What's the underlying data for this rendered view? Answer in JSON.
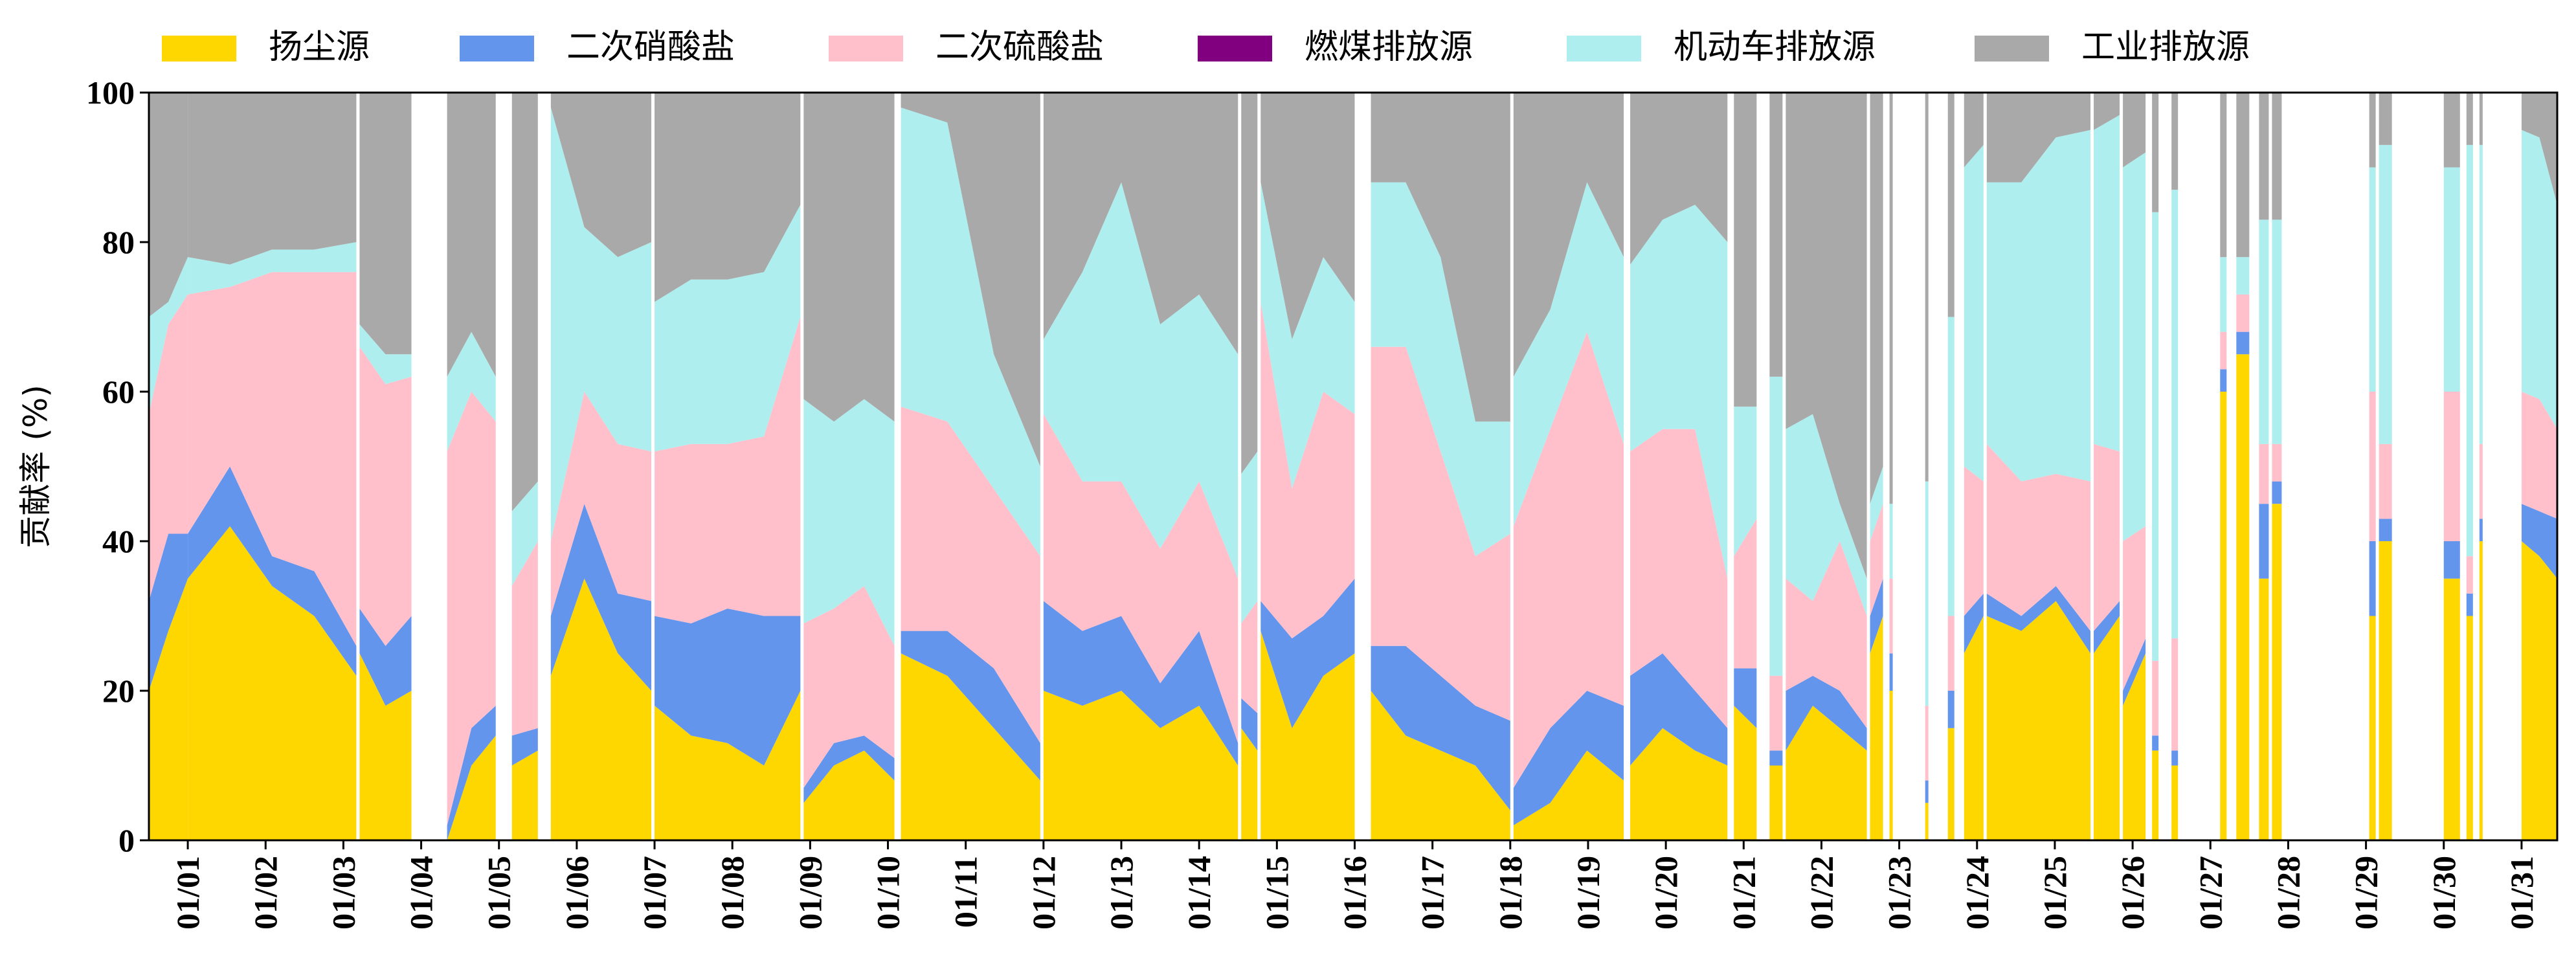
{
  "chart_data": {
    "type": "area",
    "stacked": true,
    "x_unit": "hour",
    "xlabel": "",
    "ylabel": "贡献率 (%)",
    "ylim": [
      0,
      100
    ],
    "yticks": [
      0,
      20,
      40,
      60,
      80,
      100
    ],
    "xticks": [
      "01/01",
      "01/02",
      "01/03",
      "01/04",
      "01/05",
      "01/06",
      "01/07",
      "01/08",
      "01/09",
      "01/10",
      "01/11",
      "01/12",
      "01/13",
      "01/14",
      "01/15",
      "01/16",
      "01/17",
      "01/18",
      "01/19",
      "01/20",
      "01/21",
      "01/22",
      "01/23",
      "01/24",
      "01/25",
      "01/26",
      "01/27",
      "01/28",
      "01/29",
      "01/30",
      "01/31"
    ],
    "x_range": [
      "01/01 00:00",
      "01/31 23:00"
    ],
    "legend_position": "top",
    "grid": false,
    "segment_note": "Approximate hourly-averaged segments; contributions listed per segment from bottom to top in series order; gaps are missing data.",
    "series": [
      {
        "name": "扬尘源",
        "color": "#FFD700"
      },
      {
        "name": "二次硝酸盐",
        "color": "#6495ED"
      },
      {
        "name": "二次硫酸盐",
        "color": "#FFC0CB"
      },
      {
        "name": "燃煤排放源",
        "color": "#800080"
      },
      {
        "name": "机动车排放源",
        "color": "#AFEEEE"
      },
      {
        "name": "工业排放源",
        "color": "#A9A9A9"
      }
    ],
    "segments": [
      {
        "start": "01/01 00:00",
        "end": "01/01 12:00",
        "values": [
          [
            20,
            12,
            25,
            0,
            13,
            30
          ],
          [
            28,
            13,
            28,
            0,
            3,
            28
          ],
          [
            35,
            6,
            32,
            0,
            5,
            22
          ]
        ]
      },
      {
        "start": "01/01 12:00",
        "end": "01/03 16:00",
        "values": [
          [
            35,
            6,
            32,
            0,
            5,
            22
          ],
          [
            42,
            8,
            24,
            0,
            3,
            23
          ],
          [
            34,
            4,
            38,
            0,
            3,
            21
          ],
          [
            30,
            6,
            40,
            0,
            3,
            21
          ],
          [
            22,
            4,
            50,
            0,
            4,
            20
          ]
        ]
      },
      {
        "start": "01/03 17:00",
        "end": "01/04 09:00",
        "values": [
          [
            25,
            6,
            35,
            0,
            3,
            31
          ],
          [
            18,
            8,
            35,
            0,
            4,
            35
          ],
          [
            20,
            10,
            32,
            0,
            3,
            35
          ]
        ]
      },
      {
        "start": "01/04 20:00",
        "end": "01/05 11:00",
        "values": [
          [
            0,
            2,
            50,
            0,
            10,
            38
          ],
          [
            10,
            5,
            45,
            0,
            8,
            32
          ],
          [
            14,
            4,
            38,
            0,
            6,
            38
          ]
        ]
      },
      {
        "start": "01/05 16:00",
        "end": "01/06 00:00",
        "values": [
          [
            10,
            4,
            20,
            0,
            10,
            56
          ],
          [
            12,
            3,
            25,
            0,
            8,
            52
          ]
        ]
      },
      {
        "start": "01/06 04:00",
        "end": "01/07 11:00",
        "values": [
          [
            22,
            8,
            10,
            0,
            58,
            2
          ],
          [
            35,
            10,
            15,
            0,
            22,
            18
          ],
          [
            25,
            8,
            20,
            0,
            25,
            22
          ],
          [
            20,
            12,
            20,
            0,
            28,
            20
          ]
        ]
      },
      {
        "start": "01/07 12:00",
        "end": "01/09 09:00",
        "values": [
          [
            18,
            12,
            22,
            0,
            20,
            28
          ],
          [
            14,
            15,
            24,
            0,
            22,
            25
          ],
          [
            13,
            18,
            22,
            0,
            22,
            25
          ],
          [
            10,
            20,
            24,
            0,
            22,
            24
          ],
          [
            20,
            10,
            40,
            0,
            15,
            15
          ]
        ]
      },
      {
        "start": "01/09 10:00",
        "end": "01/10 14:00",
        "values": [
          [
            5,
            2,
            22,
            0,
            30,
            41
          ],
          [
            10,
            3,
            18,
            0,
            25,
            44
          ],
          [
            12,
            2,
            20,
            0,
            25,
            41
          ],
          [
            8,
            3,
            15,
            0,
            30,
            44
          ]
        ]
      },
      {
        "start": "01/10 16:00",
        "end": "01/12 11:00",
        "values": [
          [
            25,
            3,
            30,
            0,
            40,
            2
          ],
          [
            22,
            6,
            28,
            0,
            40,
            4
          ],
          [
            15,
            8,
            24,
            0,
            18,
            35
          ],
          [
            8,
            5,
            25,
            0,
            12,
            50
          ]
        ]
      },
      {
        "start": "01/12 12:00",
        "end": "01/15 00:00",
        "values": [
          [
            20,
            12,
            25,
            0,
            10,
            33
          ],
          [
            18,
            10,
            20,
            0,
            28,
            24
          ],
          [
            20,
            10,
            18,
            0,
            40,
            12
          ],
          [
            15,
            6,
            18,
            0,
            30,
            31
          ],
          [
            18,
            10,
            20,
            0,
            25,
            27
          ],
          [
            10,
            3,
            22,
            0,
            30,
            35
          ]
        ]
      },
      {
        "start": "01/15 01:00",
        "end": "01/15 06:00",
        "values": [
          [
            15,
            4,
            10,
            0,
            20,
            51
          ],
          [
            12,
            5,
            15,
            0,
            20,
            48
          ]
        ]
      },
      {
        "start": "01/15 07:00",
        "end": "01/16 12:00",
        "values": [
          [
            28,
            4,
            40,
            0,
            16,
            12
          ],
          [
            15,
            12,
            20,
            0,
            20,
            33
          ],
          [
            22,
            8,
            30,
            0,
            18,
            22
          ],
          [
            25,
            10,
            22,
            0,
            15,
            28
          ]
        ]
      },
      {
        "start": "01/16 17:00",
        "end": "01/18 12:00",
        "values": [
          [
            20,
            6,
            40,
            0,
            22,
            12
          ],
          [
            14,
            12,
            40,
            0,
            22,
            12
          ],
          [
            12,
            10,
            30,
            0,
            26,
            22
          ],
          [
            10,
            8,
            20,
            0,
            18,
            44
          ],
          [
            4,
            12,
            25,
            0,
            15,
            44
          ]
        ]
      },
      {
        "start": "01/18 13:00",
        "end": "01/19 23:00",
        "values": [
          [
            2,
            5,
            35,
            0,
            20,
            38
          ],
          [
            5,
            10,
            40,
            0,
            16,
            29
          ],
          [
            12,
            8,
            48,
            0,
            20,
            12
          ],
          [
            8,
            10,
            35,
            0,
            25,
            22
          ]
        ]
      },
      {
        "start": "01/20 01:00",
        "end": "01/21 07:00",
        "values": [
          [
            10,
            12,
            30,
            0,
            25,
            23
          ],
          [
            15,
            10,
            30,
            0,
            28,
            17
          ],
          [
            12,
            8,
            35,
            0,
            30,
            15
          ],
          [
            10,
            5,
            20,
            0,
            45,
            20
          ]
        ]
      },
      {
        "start": "01/21 09:00",
        "end": "01/21 16:00",
        "values": [
          [
            18,
            5,
            15,
            0,
            20,
            42
          ],
          [
            15,
            8,
            20,
            0,
            15,
            42
          ]
        ]
      },
      {
        "start": "01/21 20:00",
        "end": "01/22 00:00",
        "values": [
          [
            10,
            2,
            10,
            0,
            40,
            38
          ]
        ]
      },
      {
        "start": "01/22 01:00",
        "end": "01/23 02:00",
        "values": [
          [
            12,
            8,
            15,
            0,
            20,
            45
          ],
          [
            18,
            4,
            10,
            0,
            25,
            43
          ],
          [
            15,
            5,
            20,
            0,
            5,
            55
          ],
          [
            12,
            3,
            15,
            0,
            5,
            65
          ]
        ]
      },
      {
        "start": "01/23 03:00",
        "end": "01/23 07:00",
        "values": [
          [
            25,
            5,
            10,
            0,
            5,
            55
          ],
          [
            30,
            5,
            10,
            0,
            5,
            50
          ]
        ]
      },
      {
        "start": "01/23 09:00",
        "end": "01/23 10:00",
        "values": [
          [
            20,
            5,
            10,
            0,
            10,
            55
          ]
        ]
      },
      {
        "start": "01/23 20:00",
        "end": "01/23 21:00",
        "values": [
          [
            5,
            3,
            10,
            0,
            30,
            52
          ]
        ]
      },
      {
        "start": "01/24 03:00",
        "end": "01/24 05:00",
        "values": [
          [
            15,
            5,
            10,
            0,
            40,
            30
          ]
        ]
      },
      {
        "start": "01/24 08:00",
        "end": "01/24 14:00",
        "values": [
          [
            25,
            5,
            20,
            0,
            40,
            10
          ],
          [
            30,
            3,
            15,
            0,
            45,
            7
          ]
        ]
      },
      {
        "start": "01/24 15:00",
        "end": "01/25 23:00",
        "values": [
          [
            30,
            3,
            20,
            0,
            35,
            12
          ],
          [
            28,
            2,
            18,
            0,
            40,
            12
          ],
          [
            32,
            2,
            15,
            0,
            45,
            6
          ],
          [
            25,
            3,
            20,
            0,
            47,
            5
          ]
        ]
      },
      {
        "start": "01/26 00:00",
        "end": "01/26 08:00",
        "values": [
          [
            25,
            3,
            25,
            0,
            42,
            5
          ],
          [
            30,
            2,
            20,
            0,
            45,
            3
          ]
        ]
      },
      {
        "start": "01/26 09:00",
        "end": "01/26 16:00",
        "values": [
          [
            18,
            2,
            20,
            0,
            50,
            10
          ],
          [
            25,
            2,
            15,
            0,
            50,
            8
          ]
        ]
      },
      {
        "start": "01/26 18:00",
        "end": "01/26 20:00",
        "values": [
          [
            12,
            2,
            10,
            0,
            60,
            16
          ]
        ]
      },
      {
        "start": "01/27 00:00",
        "end": "01/27 02:00",
        "values": [
          [
            10,
            2,
            15,
            0,
            60,
            13
          ]
        ]
      },
      {
        "start": "01/27 15:00",
        "end": "01/27 17:00",
        "values": [
          [
            60,
            3,
            5,
            0,
            10,
            22
          ]
        ]
      },
      {
        "start": "01/27 20:00",
        "end": "01/28 00:00",
        "values": [
          [
            65,
            3,
            5,
            0,
            5,
            22
          ]
        ]
      },
      {
        "start": "01/28 03:00",
        "end": "01/28 06:00",
        "values": [
          [
            35,
            10,
            8,
            0,
            30,
            17
          ]
        ]
      },
      {
        "start": "01/28 07:00",
        "end": "01/28 10:00",
        "values": [
          [
            45,
            3,
            5,
            0,
            30,
            17
          ]
        ]
      },
      {
        "start": "01/29 13:00",
        "end": "01/29 15:00",
        "values": [
          [
            30,
            10,
            20,
            0,
            30,
            10
          ]
        ]
      },
      {
        "start": "01/29 16:00",
        "end": "01/29 20:00",
        "values": [
          [
            40,
            3,
            10,
            0,
            40,
            7
          ]
        ]
      },
      {
        "start": "01/30 12:00",
        "end": "01/30 17:00",
        "values": [
          [
            35,
            5,
            20,
            0,
            30,
            10
          ]
        ]
      },
      {
        "start": "01/30 19:00",
        "end": "01/30 21:00",
        "values": [
          [
            30,
            3,
            5,
            0,
            55,
            7
          ]
        ]
      },
      {
        "start": "01/30 23:00",
        "end": "01/31 00:00",
        "values": [
          [
            40,
            3,
            10,
            0,
            40,
            7
          ]
        ]
      },
      {
        "start": "01/31 12:00",
        "end": "01/31 23:00",
        "values": [
          [
            40,
            5,
            15,
            0,
            35,
            5
          ],
          [
            38,
            6,
            15,
            0,
            35,
            6
          ],
          [
            35,
            8,
            12,
            0,
            30,
            15
          ]
        ]
      }
    ]
  }
}
